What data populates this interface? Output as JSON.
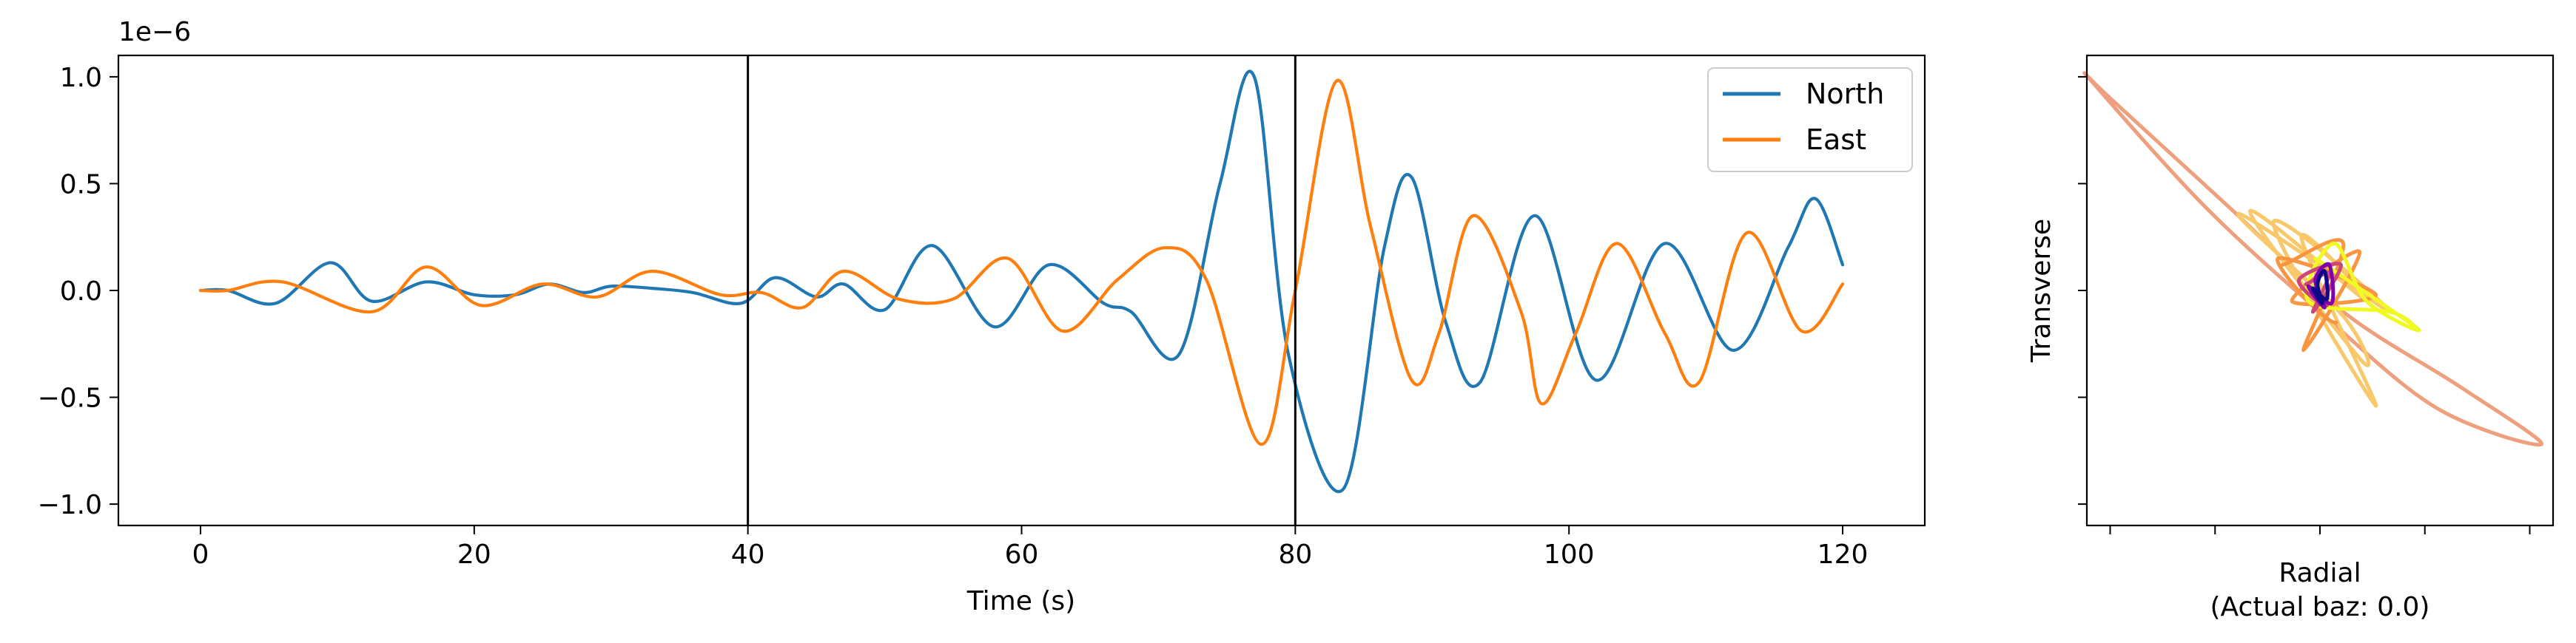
{
  "chart_data": [
    {
      "type": "line",
      "xlabel": "Time (s)",
      "ylabel": "",
      "y_offset_label": "1e−6",
      "xlim": [
        -6,
        126
      ],
      "ylim": [
        -1.1,
        1.1
      ],
      "xticks": [
        0,
        20,
        40,
        60,
        80,
        100,
        120
      ],
      "xtick_labels": [
        "0",
        "20",
        "40",
        "60",
        "80",
        "100",
        "120"
      ],
      "yticks": [
        -1.0,
        -0.5,
        0.0,
        0.5,
        1.0
      ],
      "ytick_labels": [
        "−1.0",
        "−0.5",
        "0.0",
        "0.5",
        "1.0"
      ],
      "vlines": [
        40,
        80
      ],
      "legend": {
        "placement": "upper right",
        "entries": [
          "North",
          "East"
        ]
      },
      "grid": false,
      "series": [
        {
          "name": "North",
          "color": "#1f77b4",
          "x": [
            0,
            2,
            5.5,
            9.5,
            12.5,
            16.5,
            20,
            23,
            25.5,
            28,
            30,
            33,
            36,
            39.5,
            42,
            45,
            47,
            50,
            53.5,
            58,
            62,
            66,
            68,
            71.5,
            74.5,
            77,
            79.5,
            83.5,
            86.5,
            88.5,
            91,
            93.5,
            97.5,
            102,
            107,
            112,
            116,
            118,
            120
          ],
          "y": [
            0,
            0,
            -0.06,
            0.13,
            -0.05,
            0.04,
            -0.02,
            -0.02,
            0.03,
            -0.01,
            0.02,
            0.01,
            -0.01,
            -0.06,
            0.06,
            -0.03,
            0.03,
            -0.09,
            0.21,
            -0.17,
            0.12,
            -0.06,
            -0.1,
            -0.3,
            0.5,
            1.0,
            -0.3,
            -0.93,
            0.2,
            0.53,
            -0.15,
            -0.43,
            0.35,
            -0.42,
            0.22,
            -0.28,
            0.2,
            0.43,
            0.12
          ]
        },
        {
          "name": "East",
          "color": "#ff7f0e",
          "x": [
            0,
            2,
            6,
            12.5,
            16.5,
            20.5,
            25,
            29,
            33,
            38,
            41,
            44,
            47,
            51,
            55,
            59,
            63,
            67,
            70.5,
            73.5,
            77.5,
            80,
            83,
            85.5,
            88.5,
            90.5,
            93,
            96.5,
            98,
            100.5,
            103.5,
            107,
            109.5,
            113,
            117,
            120
          ],
          "y": [
            0,
            0,
            0.04,
            -0.1,
            0.11,
            -0.07,
            0.03,
            -0.03,
            0.09,
            -0.02,
            -0.01,
            -0.08,
            0.09,
            -0.04,
            -0.04,
            0.15,
            -0.19,
            0.05,
            0.2,
            0.05,
            -0.72,
            0.0,
            0.98,
            0.3,
            -0.42,
            -0.2,
            0.35,
            -0.1,
            -0.53,
            -0.2,
            0.22,
            -0.2,
            -0.43,
            0.27,
            -0.19,
            0.03
          ]
        }
      ]
    },
    {
      "type": "scatter",
      "subtype": "particle-motion",
      "xlabel": "Radial\n(Actual baz: 0.0)",
      "xlabel_lines": [
        "Radial",
        "(Actual baz: 0.0)"
      ],
      "ylabel": "Transverse",
      "xlim": [
        -1.0,
        1.0
      ],
      "ylim": [
        -1.1,
        1.1
      ],
      "xticks": [
        -0.9,
        -0.45,
        0.0,
        0.45,
        0.9
      ],
      "yticks": [
        -1.0,
        -0.5,
        0.0,
        0.5,
        1.0
      ],
      "tick_labels_shown": false,
      "colormap": "plasma",
      "trajectories": [
        {
          "color": "#0d0887",
          "points": [
            [
              -0.01,
              0.03
            ],
            [
              0.02,
              0.09
            ],
            [
              0.03,
              -0.04
            ],
            [
              -0.03,
              0.01
            ],
            [
              0.01,
              -0.06
            ],
            [
              -0.01,
              0.03
            ]
          ]
        },
        {
          "color": "#7e03a8",
          "points": [
            [
              -0.02,
              0.05
            ],
            [
              0.04,
              0.12
            ],
            [
              0.05,
              -0.06
            ],
            [
              -0.05,
              0.02
            ],
            [
              0.02,
              -0.08
            ],
            [
              -0.02,
              0.05
            ]
          ]
        },
        {
          "color": "#cc4778",
          "points": [
            [
              0.03,
              -0.07
            ],
            [
              -0.09,
              0.05
            ],
            [
              0.09,
              0.12
            ],
            [
              -0.03,
              -0.1
            ],
            [
              0.04,
              0.08
            ],
            [
              -0.06,
              0.03
            ]
          ]
        },
        {
          "color": "#f89540",
          "points": [
            [
              0.07,
              -0.15
            ],
            [
              -0.18,
              0.15
            ],
            [
              0.24,
              -0.02
            ],
            [
              -0.12,
              -0.05
            ],
            [
              0.17,
              0.18
            ],
            [
              -0.07,
              -0.28
            ],
            [
              0.1,
              0.22
            ],
            [
              -0.16,
              0.12
            ]
          ]
        },
        {
          "color": "#f9c86a",
          "points": [
            [
              0.18,
              -0.33
            ],
            [
              -0.3,
              0.37
            ],
            [
              0.2,
              -0.05
            ],
            [
              -0.08,
              0.25
            ],
            [
              0.24,
              -0.54
            ],
            [
              -0.2,
              0.32
            ],
            [
              0.3,
              -0.1
            ],
            [
              -0.35,
              0.36
            ],
            [
              0.1,
              -0.12
            ],
            [
              0.18,
              -0.33
            ]
          ]
        },
        {
          "color": "#f0f921",
          "points": [
            [
              -0.02,
              0.15
            ],
            [
              0.42,
              -0.18
            ],
            [
              0.2,
              -0.05
            ],
            [
              0.06,
              0.22
            ],
            [
              -0.05,
              -0.05
            ],
            [
              0.3,
              -0.1
            ],
            [
              0.42,
              -0.18
            ]
          ]
        },
        {
          "color": "#eea07e",
          "points": [
            [
              -0.98,
              0.98
            ],
            [
              -0.5,
              0.4
            ],
            [
              0.0,
              -0.1
            ],
            [
              0.5,
              -0.55
            ],
            [
              0.95,
              -0.72
            ],
            [
              0.6,
              -0.45
            ],
            [
              0.1,
              -0.1
            ],
            [
              -0.4,
              0.4
            ],
            [
              -0.9,
              0.9
            ],
            [
              -0.98,
              0.98
            ]
          ]
        }
      ]
    }
  ]
}
